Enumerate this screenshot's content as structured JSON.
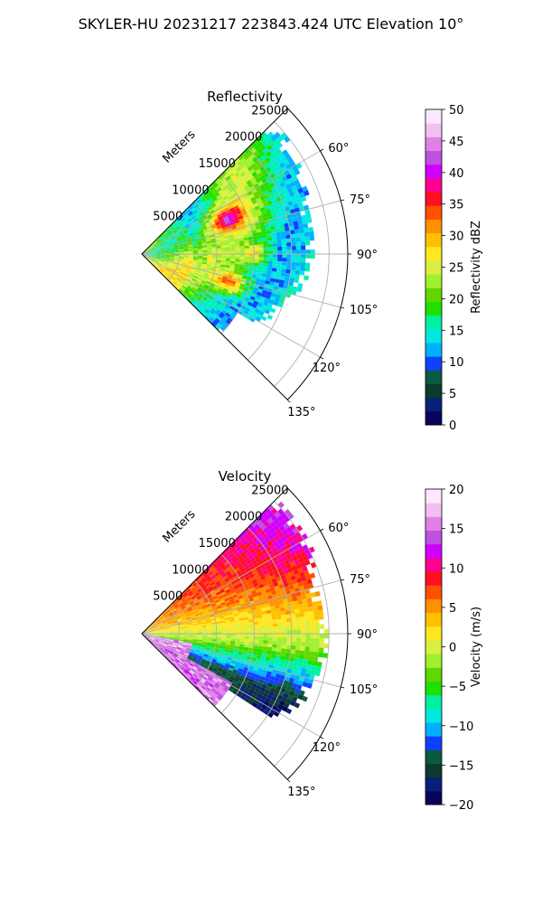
{
  "figure": {
    "suptitle": "SKYLER-HU  20231217  223843.424 UTC Elevation 10°"
  },
  "chart_data": [
    {
      "type": "heatmap",
      "projection": "polar-sector",
      "title": "Reflectivity",
      "radial_label": "Meters",
      "radial_ticks": [
        5000,
        10000,
        15000,
        20000,
        25000
      ],
      "radial_tick_labels": [
        "5000",
        "10000",
        "15000",
        "20000",
        "25000"
      ],
      "rmax": 27500,
      "theta_range_deg": [
        45,
        135
      ],
      "theta_ticks_deg": [
        60,
        75,
        90,
        105,
        120,
        135
      ],
      "theta_tick_labels": [
        "60°",
        "75°",
        "90°",
        "105°",
        "120°",
        "135°"
      ],
      "grid": true,
      "colorbar": {
        "label": "Reflectivity dBZ",
        "min": 0,
        "max": 50,
        "ticks": [
          0,
          5,
          10,
          15,
          20,
          25,
          30,
          35,
          40,
          45,
          50
        ],
        "tick_labels": [
          "0",
          "5",
          "10",
          "15",
          "20",
          "25",
          "30",
          "35",
          "40",
          "45",
          "50"
        ],
        "colormap": [
          "#08045a",
          "#0a1f7a",
          "#0d3a2e",
          "#0b5a40",
          "#1040ff",
          "#00b0ff",
          "#00e8e0",
          "#00f0a0",
          "#20e000",
          "#60d800",
          "#a0f030",
          "#d8f040",
          "#ffe820",
          "#ffc000",
          "#ff9000",
          "#ff5000",
          "#ff1020",
          "#ff0090",
          "#d000ff",
          "#c050e0",
          "#e080e8",
          "#f0c0f0",
          "#ffe8ff"
        ]
      }
    },
    {
      "type": "heatmap",
      "projection": "polar-sector",
      "title": "Velocity",
      "radial_label": "Meters",
      "radial_ticks": [
        5000,
        10000,
        15000,
        20000,
        25000
      ],
      "radial_tick_labels": [
        "5000",
        "10000",
        "15000",
        "20000",
        "25000"
      ],
      "rmax": 27500,
      "theta_range_deg": [
        45,
        135
      ],
      "theta_ticks_deg": [
        60,
        75,
        90,
        105,
        120,
        135
      ],
      "theta_tick_labels": [
        "60°",
        "75°",
        "90°",
        "105°",
        "120°",
        "135°"
      ],
      "grid": true,
      "colorbar": {
        "label": "Velocity (m/s)",
        "min": -20,
        "max": 20,
        "ticks": [
          -20,
          -15,
          -10,
          -5,
          0,
          5,
          10,
          15,
          20
        ],
        "tick_labels": [
          "−20",
          "−15",
          "−10",
          "−5",
          "0",
          "5",
          "10",
          "15",
          "20"
        ],
        "colormap": [
          "#08045a",
          "#0a1f7a",
          "#0d3a2e",
          "#0b5a40",
          "#1040ff",
          "#00b0ff",
          "#00e8e0",
          "#00f0a0",
          "#20e000",
          "#60d800",
          "#a0f030",
          "#d8f040",
          "#ffe820",
          "#ffc000",
          "#ff9000",
          "#ff5000",
          "#ff1020",
          "#ff0090",
          "#d000ff",
          "#c050e0",
          "#e080e8",
          "#f0c0f0",
          "#ffe8ff"
        ]
      }
    }
  ]
}
